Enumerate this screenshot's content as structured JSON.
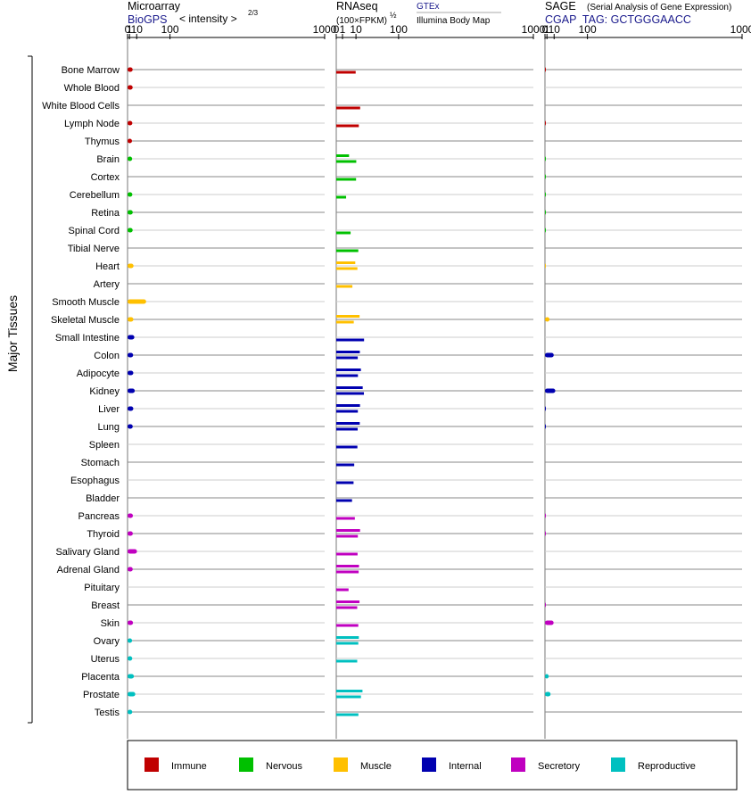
{
  "chart_data": {
    "type": "bar",
    "orientation": "horizontal",
    "group_label": "Major Tissues",
    "tissues": [
      "Bone Marrow",
      "Whole Blood",
      "White Blood Cells",
      "Lymph Node",
      "Thymus",
      "Brain",
      "Cortex",
      "Cerebellum",
      "Retina",
      "Spinal Cord",
      "Tibial Nerve",
      "Heart",
      "Artery",
      "Smooth Muscle",
      "Skeletal Muscle",
      "Small Intestine",
      "Colon",
      "Adipocyte",
      "Kidney",
      "Liver",
      "Lung",
      "Spleen",
      "Stomach",
      "Esophagus",
      "Bladder",
      "Pancreas",
      "Thyroid",
      "Salivary Gland",
      "Adrenal Gland",
      "Pituitary",
      "Breast",
      "Skin",
      "Ovary",
      "Uterus",
      "Placenta",
      "Prostate",
      "Testis"
    ],
    "tissue_categories": [
      "immune",
      "immune",
      "immune",
      "immune",
      "immune",
      "nervous",
      "nervous",
      "nervous",
      "nervous",
      "nervous",
      "nervous",
      "muscle",
      "muscle",
      "muscle",
      "muscle",
      "internal",
      "internal",
      "internal",
      "internal",
      "internal",
      "internal",
      "internal",
      "internal",
      "internal",
      "internal",
      "secretory",
      "secretory",
      "secretory",
      "secretory",
      "secretory",
      "secretory",
      "secretory",
      "reproductive",
      "reproductive",
      "reproductive",
      "reproductive",
      "reproductive"
    ],
    "categories": [
      {
        "key": "immune",
        "label": "Immune",
        "color": "#c00000"
      },
      {
        "key": "nervous",
        "label": "Nervous",
        "color": "#00c000"
      },
      {
        "key": "muscle",
        "label": "Muscle",
        "color": "#ffc000"
      },
      {
        "key": "internal",
        "label": "Internal",
        "color": "#0000b0"
      },
      {
        "key": "secretory",
        "label": "Secretory",
        "color": "#c000c0"
      },
      {
        "key": "reproductive",
        "label": "Reproductive",
        "color": "#00c0c0"
      }
    ],
    "panels": [
      {
        "key": "microarray",
        "title": "Microarray",
        "subtitle": "BioGPS",
        "scale_label": "< intensity >",
        "scale_exponent": "2/3",
        "exponent": 0.6667,
        "xlim": [
          0,
          1000
        ],
        "ticks": [
          "0",
          "1",
          "10",
          "100",
          "1000"
        ],
        "tick_values": [
          0,
          1,
          10,
          100,
          1000
        ],
        "values": [
          4.2,
          4.2,
          null,
          3.8,
          3.4,
          3.6,
          null,
          3.8,
          4.3,
          4.2,
          null,
          5.3,
          null,
          29,
          5.1,
          6.4,
          4.8,
          5,
          7,
          5,
          4.3,
          null,
          null,
          null,
          null,
          4.5,
          4.4,
          10.5,
          4.3,
          null,
          null,
          4.6,
          3.5,
          3.7,
          5.8,
          7.8,
          3.7
        ]
      },
      {
        "key": "rnaseq",
        "title": "RNAseq",
        "scale_label": "(100×FPKM)",
        "scale_exponent": "½",
        "source_1": "GTEx",
        "source_2": "Illumina Body Map",
        "exponent": 0.5,
        "xlim": [
          0,
          1000
        ],
        "ticks": [
          "0",
          "1",
          "10",
          "100",
          "1000"
        ],
        "tick_values": [
          0,
          1,
          10,
          100,
          1000
        ],
        "gtex_values": [
          null,
          null,
          null,
          null,
          null,
          4.2,
          null,
          null,
          null,
          null,
          null,
          9.3,
          null,
          null,
          14,
          null,
          14.3,
          15.6,
          18,
          14.5,
          14.2,
          null,
          null,
          null,
          null,
          null,
          14.6,
          null,
          13.3,
          null,
          13.9,
          null,
          13.1,
          null,
          null,
          17.7,
          null
        ],
        "ibm_values": [
          9.7,
          null,
          14.7,
          13.1,
          null,
          10.3,
          10.1,
          2.5,
          null,
          5.3,
          12.5,
          11.5,
          6.7,
          null,
          7.9,
          19.9,
          11.9,
          12.1,
          19.7,
          12,
          11.8,
          11.5,
          8.3,
          7.7,
          6.4,
          8.9,
          12,
          11.7,
          12.9,
          3.9,
          11.3,
          12.5,
          12.5,
          11.3,
          null,
          15.7,
          12.6
        ]
      },
      {
        "key": "sage",
        "title": "SAGE",
        "subtitle_detail": "(Serial Analysis of Gene Expression)",
        "subtitle": "CGAP  TAG: GCTGGGAACC",
        "exponent": 0.6667,
        "xlim": [
          0,
          1000
        ],
        "ticks": [
          "0",
          "1",
          "10",
          "100",
          "1000"
        ],
        "tick_values": [
          0,
          1,
          10,
          100,
          1000
        ],
        "values": [
          0.05,
          null,
          null,
          0.05,
          null,
          0.03,
          0.02,
          0.02,
          0.02,
          0.03,
          null,
          0.01,
          null,
          null,
          3.5,
          null,
          9.4,
          null,
          12,
          0.05,
          0.05,
          null,
          null,
          null,
          null,
          0.05,
          0.05,
          null,
          null,
          null,
          0.05,
          9.2,
          null,
          null,
          2.6,
          4.8,
          null
        ]
      }
    ]
  }
}
